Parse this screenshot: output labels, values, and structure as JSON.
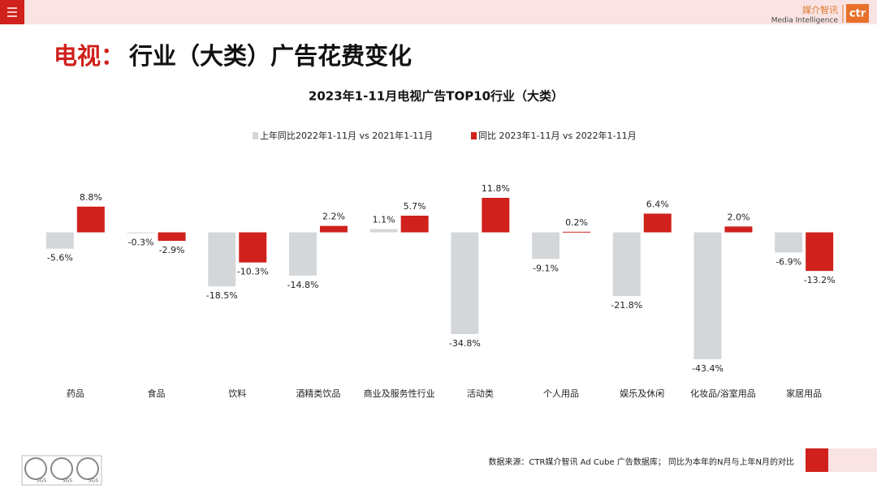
{
  "page_title": {
    "highlight": "电视：",
    "text": "行业（大类）广告花费变化"
  },
  "logo": {
    "cn": "媒介智讯",
    "en": "Media Intelligence",
    "mark": "ctr"
  },
  "footer": "数据来源：CTR媒介智讯 Ad Cube 广告数据库； 同比为本年的N月与上年N月的对比",
  "badges": [
    "SGS",
    "SGS",
    "SGS"
  ],
  "chart_data": {
    "type": "bar",
    "title": "2023年1-11月电视广告TOP10行业（大类）",
    "categories": [
      "药品",
      "食品",
      "饮料",
      "酒精类饮品",
      "商业及服务性行业",
      "活动类",
      "个人用品",
      "娱乐及休闲",
      "化妆品/浴室用品",
      "家居用品"
    ],
    "series": [
      {
        "name": "上年同比2022年1-11月 vs 2021年1-11月",
        "color": "#d4d7da",
        "values": [
          -5.6,
          -0.3,
          -18.5,
          -14.8,
          1.1,
          -34.8,
          -9.1,
          -21.8,
          -43.4,
          -6.9
        ],
        "value_labels": [
          "-5.6%",
          "-0.3%",
          "-18.5%",
          "-14.8%",
          "1.1%",
          "-34.8%",
          "-9.1%",
          "-21.8%",
          "-43.4%",
          "-6.9%"
        ]
      },
      {
        "name": "同比 2023年1-11月 vs 2022年1-11月",
        "color": "#d0211c",
        "values": [
          8.8,
          -2.9,
          -10.3,
          2.2,
          5.7,
          11.8,
          0.2,
          6.4,
          2.0,
          -13.2
        ],
        "value_labels": [
          "8.8%",
          "-2.9%",
          "-10.3%",
          "2.2%",
          "5.7%",
          "11.8%",
          "0.2%",
          "6.4%",
          "2.0%",
          "-13.2%"
        ]
      }
    ],
    "legend": "top"
  }
}
